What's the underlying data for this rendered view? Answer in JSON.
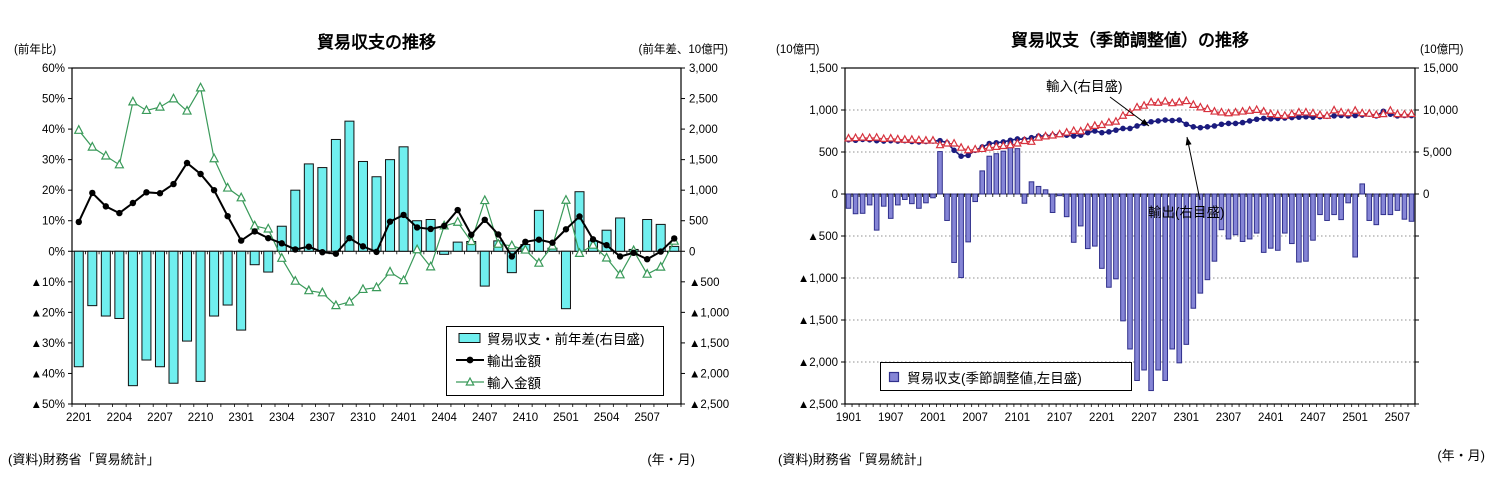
{
  "left_chart": {
    "title": "貿易収支の推移",
    "caption_left": "(前年比)",
    "caption_right": "(前年差、10億円)",
    "source": "(資料)財務省「貿易統計」",
    "axis_note": "(年・月)",
    "legend_labels": {
      "balance": "貿易収支・前年差(右目盛)",
      "exports": "輸出金額",
      "imports": "輸入金額"
    }
  },
  "right_chart": {
    "title": "貿易収支（季節調整値）の推移",
    "caption_left": "(10億円)",
    "caption_right": "(10億円)",
    "source": "(資料)財務省「貿易統計」",
    "axis_note": "(年・月)",
    "legend_labels": {
      "balance": "貿易収支(季節調整値,左目盛)"
    },
    "annotations": {
      "imports": "輸入(右目盛)",
      "exports": "輸出(右目盛)"
    }
  },
  "colors": {
    "left_bar_fill": "#70EFEF",
    "left_bar_stroke": "#111111",
    "left_export_line": "#000000",
    "left_import_line": "#3A9A5A",
    "right_bar_fill": "#8585D6",
    "right_bar_stroke": "#30308C",
    "right_export_line": "#1B1B7E",
    "right_import_line": "#D7323E",
    "grid_dotted": "#909090"
  },
  "chart_data": [
    {
      "id": "trade-balance-yoy-chart",
      "type": "bar+line",
      "title": "貿易収支の推移",
      "x_label_every": 3,
      "x": [
        "2201",
        "2202",
        "2203",
        "2204",
        "2205",
        "2206",
        "2207",
        "2208",
        "2209",
        "2210",
        "2211",
        "2212",
        "2301",
        "2302",
        "2303",
        "2304",
        "2305",
        "2306",
        "2307",
        "2308",
        "2309",
        "2310",
        "2311",
        "2312",
        "2401",
        "2402",
        "2403",
        "2404",
        "2405",
        "2406",
        "2407",
        "2408",
        "2409",
        "2410",
        "2411",
        "2412",
        "2501",
        "2502",
        "2503",
        "2504",
        "2505",
        "2506",
        "2507",
        "2508",
        "2509"
      ],
      "axes": {
        "left": {
          "unit": "%",
          "min": -50,
          "max": 60,
          "step": 10,
          "tick_labels": [
            "60%",
            "50%",
            "40%",
            "30%",
            "20%",
            "10%",
            "0%",
            "▲10%",
            "▲20%",
            "▲30%",
            "▲40%",
            "▲50%"
          ]
        },
        "right": {
          "unit": "10億円",
          "min": -2500,
          "max": 3000,
          "step": 500,
          "tick_labels": [
            "3,000",
            "2,500",
            "2,000",
            "1,500",
            "1,000",
            "500",
            "0",
            "▲500",
            "▲1,000",
            "▲1,500",
            "▲2,000",
            "▲2,500"
          ]
        }
      },
      "series": [
        {
          "name": "貿易収支・前年差(右目盛)",
          "type": "bar",
          "axis": "right",
          "values": [
            -1890,
            -890,
            -1060,
            -1100,
            -2200,
            -1780,
            -1890,
            -2160,
            -1470,
            -2130,
            -1060,
            -880,
            -1290,
            -220,
            -340,
            410,
            1000,
            1430,
            1370,
            1830,
            2130,
            1470,
            1220,
            1500,
            1710,
            500,
            520,
            -50,
            150,
            160,
            -570,
            170,
            -350,
            110,
            670,
            50,
            -940,
            975,
            170,
            345,
            545,
            30,
            520,
            440,
            80
          ]
        },
        {
          "name": "輸出金額",
          "type": "line",
          "axis": "left",
          "marker": "filled-circle",
          "values": [
            9.6,
            19.1,
            14.7,
            12.5,
            15.8,
            19.3,
            19.0,
            22.0,
            28.9,
            25.3,
            20.0,
            11.5,
            3.5,
            6.5,
            4.3,
            2.6,
            0.6,
            1.5,
            -0.3,
            -0.8,
            4.3,
            1.6,
            -0.2,
            9.7,
            11.9,
            7.8,
            7.3,
            8.3,
            13.5,
            5.4,
            10.3,
            5.5,
            -1.7,
            3.1,
            3.8,
            2.8,
            7.2,
            11.4,
            3.9,
            2.0,
            -1.7,
            -0.5,
            -2.6,
            -0.1,
            4.2
          ]
        },
        {
          "name": "輸入金額",
          "type": "line",
          "axis": "left",
          "marker": "open-triangle",
          "values": [
            39.6,
            34.1,
            31.2,
            28.3,
            48.9,
            46.1,
            47.2,
            49.9,
            45.9,
            53.5,
            30.3,
            20.7,
            17.5,
            8.3,
            7.3,
            -2.3,
            -9.8,
            -12.9,
            -13.6,
            -17.8,
            -16.6,
            -12.5,
            -11.9,
            -6.8,
            -9.6,
            0.5,
            -5.1,
            8.3,
            9.5,
            3.2,
            16.6,
            2.3,
            1.8,
            0.4,
            -3.9,
            1.7,
            16.7,
            -0.7,
            2.0,
            -2.2,
            -7.7,
            0.2,
            -7.5,
            -5.2,
            3.3
          ]
        }
      ]
    },
    {
      "id": "trade-balance-sa-chart",
      "type": "bar+line",
      "title": "貿易収支（季節調整値）の推移",
      "x_label_every": 6,
      "x": [
        "1901",
        "1902",
        "1903",
        "1904",
        "1905",
        "1906",
        "1907",
        "1908",
        "1909",
        "1910",
        "1911",
        "1912",
        "2001",
        "2002",
        "2003",
        "2004",
        "2005",
        "2006",
        "2007",
        "2008",
        "2009",
        "2010",
        "2011",
        "2012",
        "2101",
        "2102",
        "2103",
        "2104",
        "2105",
        "2106",
        "2107",
        "2108",
        "2109",
        "2110",
        "2111",
        "2112",
        "2201",
        "2202",
        "2203",
        "2204",
        "2205",
        "2206",
        "2207",
        "2208",
        "2209",
        "2210",
        "2211",
        "2212",
        "2301",
        "2302",
        "2303",
        "2304",
        "2305",
        "2306",
        "2307",
        "2308",
        "2309",
        "2310",
        "2311",
        "2312",
        "2401",
        "2402",
        "2403",
        "2404",
        "2405",
        "2406",
        "2407",
        "2408",
        "2409",
        "2410",
        "2411",
        "2412",
        "2501",
        "2502",
        "2503",
        "2504",
        "2505",
        "2506",
        "2507",
        "2508",
        "2509"
      ],
      "axes": {
        "left": {
          "unit": "10億円",
          "min": -2500,
          "max": 1500,
          "step": 500,
          "tick_labels": [
            "1,500",
            "1,000",
            "500",
            "0",
            "▲500",
            "▲1,000",
            "▲1,500",
            "▲2,000",
            "▲2,500"
          ]
        },
        "right": {
          "unit": "10億円",
          "min": -25000,
          "max": 15000,
          "step": 5000,
          "tick_labels": [
            "15,000",
            "10,000",
            "5,000",
            "0"
          ]
        }
      },
      "series": [
        {
          "name": "貿易収支(季節調整値,左目盛)",
          "type": "bar",
          "axis": "left",
          "values": [
            -170,
            -235,
            -230,
            -130,
            -430,
            -145,
            -290,
            -130,
            -65,
            -115,
            -170,
            -105,
            -45,
            505,
            -315,
            -815,
            -995,
            -570,
            -90,
            275,
            450,
            480,
            510,
            630,
            540,
            -110,
            145,
            90,
            50,
            -220,
            -20,
            -270,
            -575,
            -380,
            -650,
            -620,
            -885,
            -1110,
            -1010,
            -1510,
            -1845,
            -2220,
            -2095,
            -2340,
            -2095,
            -2220,
            -1845,
            -2010,
            -1790,
            -1360,
            -1180,
            -1020,
            -800,
            -425,
            -535,
            -485,
            -565,
            -535,
            -465,
            -695,
            -645,
            -670,
            -465,
            -590,
            -810,
            -800,
            -550,
            -245,
            -315,
            -245,
            -305,
            -105,
            -750,
            120,
            -315,
            -365,
            -245,
            -245,
            -195,
            -300,
            -325
          ]
        },
        {
          "name": "輸出(右目盛)",
          "type": "line",
          "axis": "right",
          "marker": "filled-circle",
          "values": [
            6450,
            6400,
            6500,
            6450,
            6350,
            6300,
            6350,
            6300,
            6350,
            6250,
            6200,
            6250,
            6300,
            6350,
            6100,
            5200,
            4500,
            4600,
            5200,
            5600,
            6000,
            6100,
            6200,
            6400,
            6550,
            6500,
            6700,
            6900,
            6900,
            7000,
            7100,
            7000,
            6900,
            7000,
            7300,
            7500,
            7300,
            7400,
            7600,
            7800,
            7800,
            8100,
            8400,
            8600,
            8700,
            8800,
            8750,
            8800,
            8300,
            8000,
            7900,
            8000,
            8100,
            8300,
            8400,
            8400,
            8500,
            8700,
            8900,
            9000,
            8950,
            9000,
            9050,
            9100,
            9150,
            9200,
            9150,
            9200,
            9250,
            9300,
            9350,
            9300,
            9350,
            9400,
            9500,
            9300,
            9850,
            9500,
            9300,
            9350,
            9330
          ]
        },
        {
          "name": "輸入(右目盛)",
          "type": "line",
          "axis": "right",
          "marker": "open-triangle",
          "values": [
            6600,
            6650,
            6700,
            6650,
            6700,
            6550,
            6600,
            6500,
            6450,
            6450,
            6400,
            6350,
            6350,
            5800,
            6000,
            6000,
            5500,
            5200,
            5300,
            5350,
            5500,
            5600,
            5700,
            5800,
            6000,
            6300,
            6200,
            6700,
            6850,
            6950,
            7100,
            7300,
            7500,
            7450,
            7900,
            8100,
            8200,
            8500,
            8600,
            9300,
            9650,
            10300,
            10500,
            10900,
            10850,
            11000,
            10800,
            10900,
            11050,
            10600,
            10300,
            10100,
            9800,
            9700,
            9600,
            9700,
            9800,
            9900,
            10000,
            9800,
            9500,
            9400,
            9300,
            9500,
            9700,
            9700,
            9600,
            9400,
            9300,
            9950,
            9700,
            9600,
            9900,
            9600,
            9550,
            9400,
            9500,
            9900,
            9500,
            9450,
            9520
          ]
        }
      ]
    }
  ]
}
